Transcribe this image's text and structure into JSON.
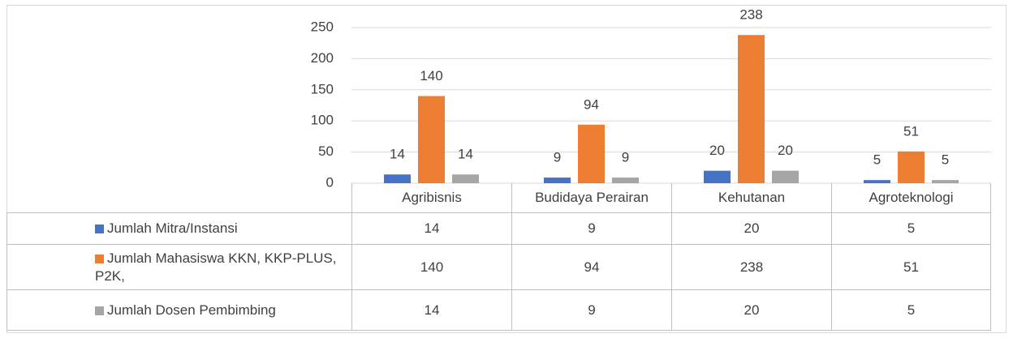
{
  "chart_data": {
    "type": "bar",
    "categories": [
      "Agribisnis",
      "Budidaya Perairan",
      "Kehutanan",
      "Agroteknologi"
    ],
    "series": [
      {
        "name": "Jumlah Mitra/Instansi",
        "color": "#4472c4",
        "values": [
          14,
          9,
          20,
          5
        ]
      },
      {
        "name": "Jumlah Mahasiswa KKN, KKP-PLUS, P2K,",
        "color": "#ed7d31",
        "values": [
          140,
          94,
          238,
          51
        ]
      },
      {
        "name": "Jumlah Dosen Pembimbing",
        "color": "#a5a5a5",
        "values": [
          14,
          9,
          20,
          5
        ]
      }
    ],
    "ylim": [
      0,
      250
    ],
    "yticks": [
      0,
      50,
      100,
      150,
      200,
      250
    ],
    "grid": true,
    "data_table": true
  }
}
